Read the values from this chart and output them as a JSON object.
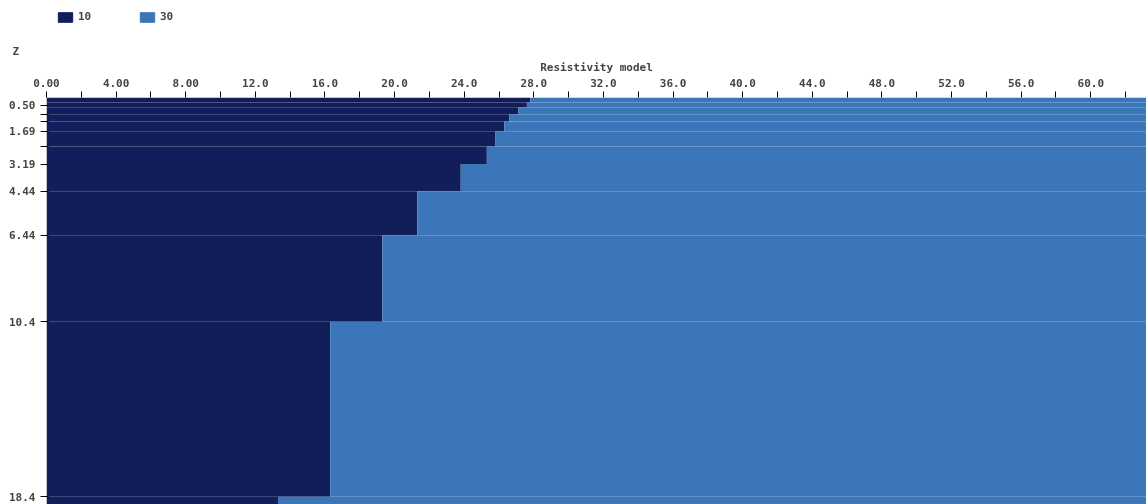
{
  "chart_data": {
    "type": "bar",
    "orientation": "horizontal",
    "stacked": true,
    "xlabel": "Resistivity model",
    "ylabel": "Z",
    "x": [
      0.265,
      0.49,
      0.76,
      1.085,
      1.47,
      2.04,
      2.79,
      3.815,
      5.44,
      8.42,
      14.4,
      18.575
    ],
    "series": [
      {
        "name": "10",
        "color": "#111e5a",
        "values": [
          27.8,
          27.6,
          27.1,
          26.6,
          26.3,
          25.8,
          25.3,
          23.8,
          21.3,
          19.3,
          16.3,
          13.3
        ]
      },
      {
        "name": "30",
        "color": "#3b76b9",
        "values": [
          35.4,
          35.6,
          36.1,
          36.6,
          36.9,
          37.4,
          37.9,
          39.4,
          41.9,
          43.9,
          46.9,
          49.9
        ]
      }
    ],
    "xlim": [
      0,
      63.2
    ],
    "ylim": [
      18.75,
      0.15
    ],
    "xticks": [
      {
        "value": 0,
        "label": "0.00"
      },
      {
        "value": 2,
        "label": null
      },
      {
        "value": 4,
        "label": "4.00"
      },
      {
        "value": 6,
        "label": null
      },
      {
        "value": 8,
        "label": "8.00"
      },
      {
        "value": 10,
        "label": null
      },
      {
        "value": 12,
        "label": "12.0"
      },
      {
        "value": 14,
        "label": null
      },
      {
        "value": 16,
        "label": "16.0"
      },
      {
        "value": 18,
        "label": null
      },
      {
        "value": 20,
        "label": "20.0"
      },
      {
        "value": 22,
        "label": null
      },
      {
        "value": 24,
        "label": "24.0"
      },
      {
        "value": 26,
        "label": null
      },
      {
        "value": 28,
        "label": "28.0"
      },
      {
        "value": 30,
        "label": null
      },
      {
        "value": 32,
        "label": "32.0"
      },
      {
        "value": 34,
        "label": null
      },
      {
        "value": 36,
        "label": "36.0"
      },
      {
        "value": 38,
        "label": null
      },
      {
        "value": 40,
        "label": "40.0"
      },
      {
        "value": 42,
        "label": null
      },
      {
        "value": 44,
        "label": "44.0"
      },
      {
        "value": 46,
        "label": null
      },
      {
        "value": 48,
        "label": "48.0"
      },
      {
        "value": 50,
        "label": null
      },
      {
        "value": 52,
        "label": "52.0"
      },
      {
        "value": 54,
        "label": null
      },
      {
        "value": 56,
        "label": "56.0"
      },
      {
        "value": 58,
        "label": null
      },
      {
        "value": 60,
        "label": "60.0"
      },
      {
        "value": 62,
        "label": null
      }
    ],
    "yticks": [
      {
        "value": 0.5,
        "label": "0.50"
      },
      {
        "value": 0.92,
        "label": null
      },
      {
        "value": 1.25,
        "label": null
      },
      {
        "value": 1.69,
        "label": "1.69"
      },
      {
        "value": 2.39,
        "label": null
      },
      {
        "value": 3.19,
        "label": "3.19"
      },
      {
        "value": 4.44,
        "label": "4.44"
      },
      {
        "value": 6.44,
        "label": "6.44"
      },
      {
        "value": 10.4,
        "label": "10.4"
      },
      {
        "value": 18.4,
        "label": "18.4"
      }
    ],
    "legend": "top left"
  }
}
